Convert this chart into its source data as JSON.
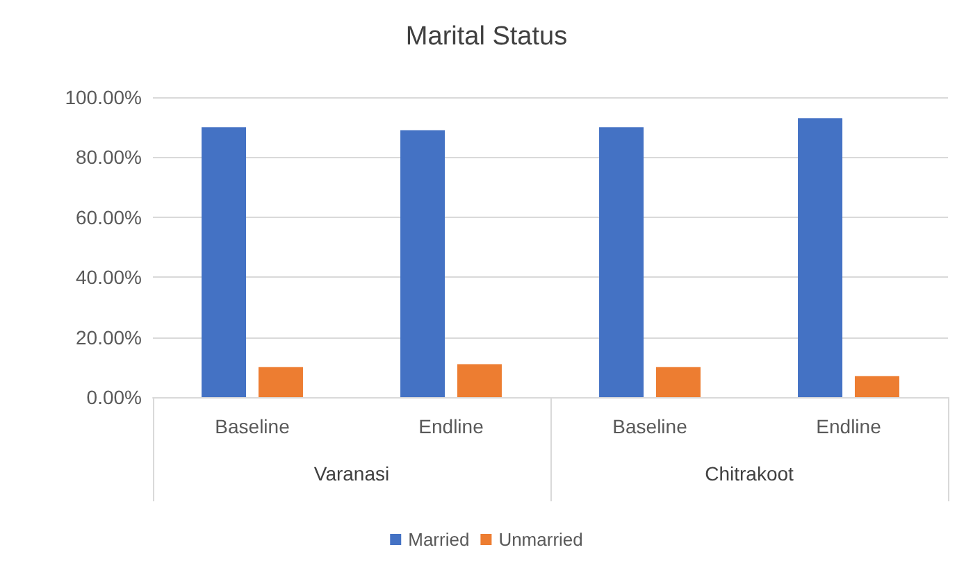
{
  "chart_data": {
    "type": "bar",
    "title": "Marital Status",
    "categories": [
      "Baseline",
      "Endline",
      "Baseline",
      "Endline"
    ],
    "annotations": [
      "Varanasi",
      "Chitrakoot"
    ],
    "series": [
      {
        "name": "Married",
        "color": "#4472c4",
        "values": [
          90,
          89,
          90,
          93
        ]
      },
      {
        "name": "Unmarried",
        "color": "#ed7d31",
        "values": [
          10,
          11,
          10,
          7
        ]
      }
    ],
    "ylim": [
      0,
      100
    ],
    "yticks": [
      {
        "value": 0,
        "label": "0.00%"
      },
      {
        "value": 20,
        "label": "20.00%"
      },
      {
        "value": 40,
        "label": "40.00%"
      },
      {
        "value": 60,
        "label": "60.00%"
      },
      {
        "value": 80,
        "label": "80.00%"
      },
      {
        "value": 100,
        "label": "100.00%"
      }
    ],
    "grid": "y",
    "legend": "bottom"
  }
}
